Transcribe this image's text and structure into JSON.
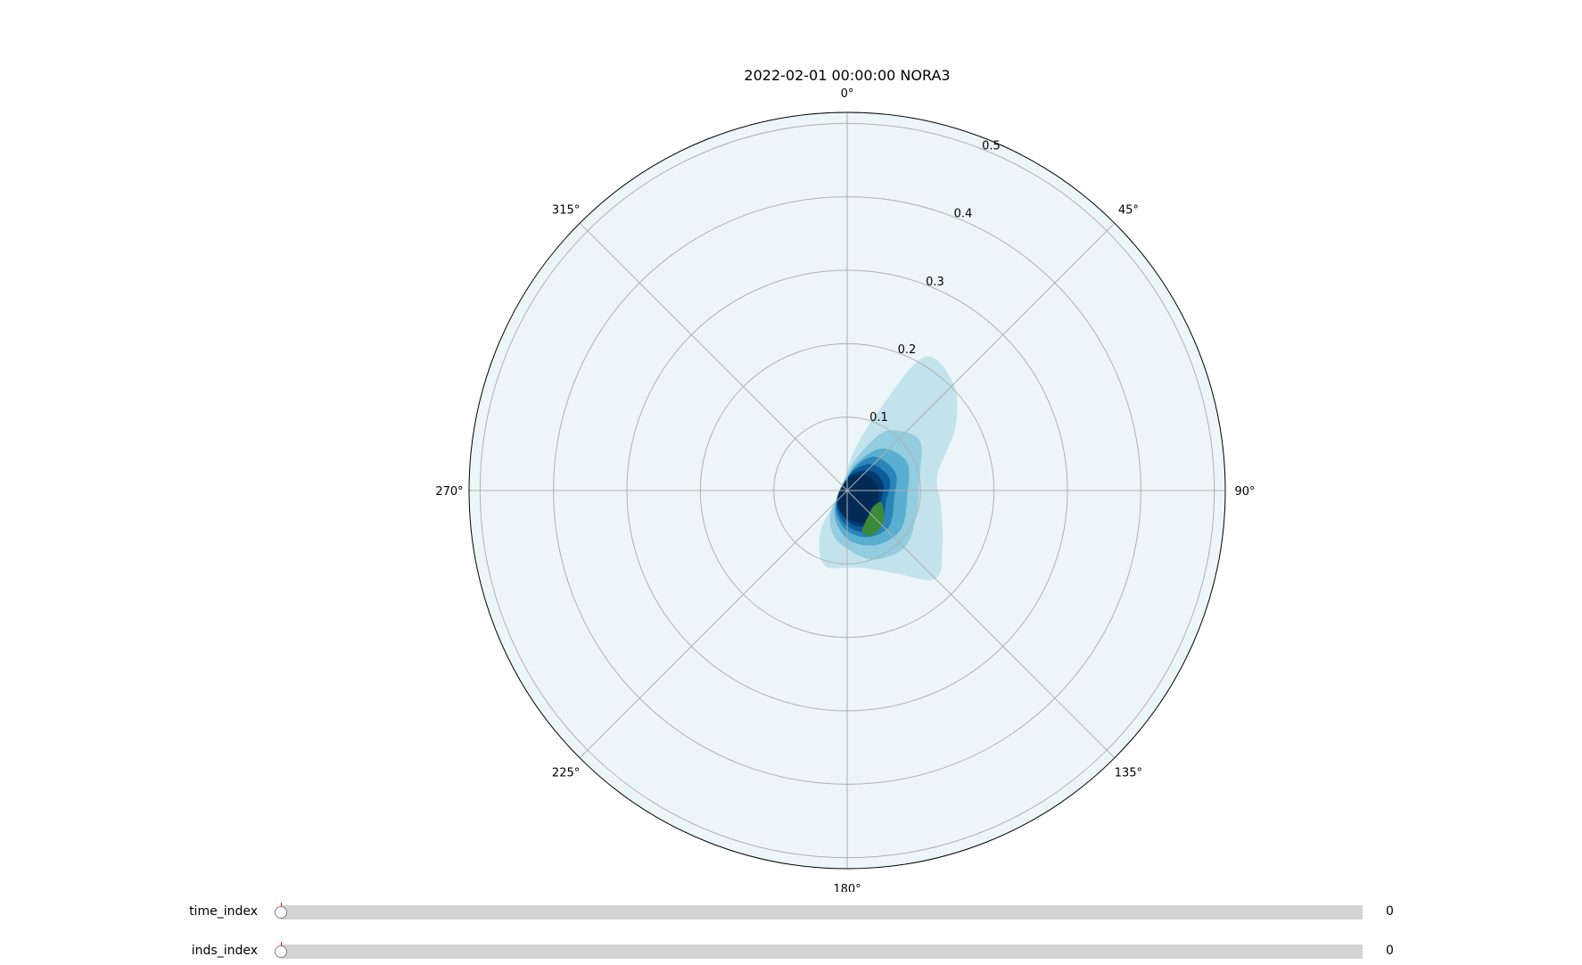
{
  "chart_data": {
    "type": "polar-contour",
    "title": "2022-02-01 00:00:00 NORA3",
    "theta_direction": "clockwise",
    "theta_zero": "N",
    "theta_ticks": [
      "0°",
      "45°",
      "90°",
      "135°",
      "180°",
      "225°",
      "270°",
      "315°"
    ],
    "r_ticks": [
      "0.1",
      "0.2",
      "0.3",
      "0.4",
      "0.5"
    ],
    "r_max": 0.515,
    "grid": true,
    "colormap": [
      "#c3e3ec",
      "#93cde0",
      "#5aaecf",
      "#2a86b9",
      "#0b5c98",
      "#043a6f",
      "#032a55",
      "#3a8a3a"
    ],
    "background_color": "#ecf6f9",
    "density_peak": {
      "theta_deg": 140,
      "r": 0.065
    },
    "contours": [
      [
        [
          30,
          0.21
        ],
        [
          45,
          0.205
        ],
        [
          60,
          0.17
        ],
        [
          80,
          0.125
        ],
        [
          100,
          0.13
        ],
        [
          120,
          0.15
        ],
        [
          135,
          0.17
        ],
        [
          150,
          0.13
        ],
        [
          165,
          0.11
        ],
        [
          180,
          0.105
        ],
        [
          195,
          0.108
        ],
        [
          205,
          0.09
        ],
        [
          215,
          0.06
        ],
        [
          225,
          0.025
        ],
        [
          270,
          0.01
        ],
        [
          330,
          0.01
        ],
        [
          10,
          0.055
        ],
        [
          22,
          0.12
        ]
      ],
      [
        [
          35,
          0.1
        ],
        [
          55,
          0.12
        ],
        [
          80,
          0.1
        ],
        [
          110,
          0.1
        ],
        [
          135,
          0.11
        ],
        [
          160,
          0.1
        ],
        [
          185,
          0.075
        ],
        [
          200,
          0.06
        ],
        [
          215,
          0.04
        ],
        [
          240,
          0.015
        ],
        [
          300,
          0.01
        ],
        [
          10,
          0.035
        ],
        [
          25,
          0.07
        ]
      ],
      [
        [
          40,
          0.075
        ],
        [
          65,
          0.09
        ],
        [
          95,
          0.082
        ],
        [
          125,
          0.09
        ],
        [
          150,
          0.085
        ],
        [
          175,
          0.07
        ],
        [
          195,
          0.05
        ],
        [
          215,
          0.03
        ],
        [
          250,
          0.012
        ],
        [
          330,
          0.01
        ],
        [
          20,
          0.04
        ]
      ],
      [
        [
          40,
          0.06
        ],
        [
          70,
          0.07
        ],
        [
          100,
          0.065
        ],
        [
          130,
          0.075
        ],
        [
          155,
          0.07
        ],
        [
          180,
          0.055
        ],
        [
          205,
          0.035
        ],
        [
          240,
          0.015
        ],
        [
          330,
          0.01
        ],
        [
          20,
          0.035
        ]
      ],
      [
        [
          45,
          0.05
        ],
        [
          75,
          0.06
        ],
        [
          105,
          0.055
        ],
        [
          135,
          0.065
        ],
        [
          160,
          0.06
        ],
        [
          185,
          0.045
        ],
        [
          215,
          0.025
        ],
        [
          300,
          0.008
        ],
        [
          20,
          0.03
        ]
      ],
      [
        [
          50,
          0.042
        ],
        [
          80,
          0.05
        ],
        [
          110,
          0.048
        ],
        [
          140,
          0.058
        ],
        [
          165,
          0.05
        ],
        [
          190,
          0.035
        ],
        [
          230,
          0.018
        ],
        [
          10,
          0.02
        ]
      ],
      [
        [
          60,
          0.036
        ],
        [
          90,
          0.043
        ],
        [
          120,
          0.044
        ],
        [
          150,
          0.05
        ],
        [
          175,
          0.04
        ],
        [
          200,
          0.028
        ],
        [
          250,
          0.012
        ],
        [
          20,
          0.02
        ]
      ],
      [
        [
          110,
          0.05
        ],
        [
          130,
          0.065
        ],
        [
          150,
          0.07
        ],
        [
          160,
          0.06
        ],
        [
          140,
          0.045
        ],
        [
          120,
          0.042
        ]
      ]
    ]
  },
  "sliders": [
    {
      "label": "time_index",
      "value_text": "0",
      "fraction": 0
    },
    {
      "label": "inds_index",
      "value_text": "0",
      "fraction": 0
    }
  ]
}
